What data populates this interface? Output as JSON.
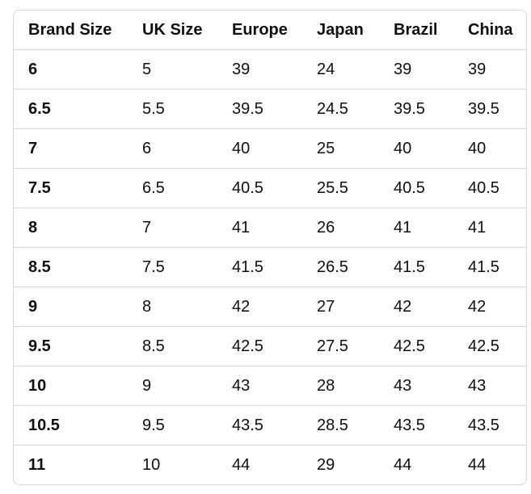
{
  "table": {
    "header": [
      "Brand Size",
      "UK Size",
      "Europe",
      "Japan",
      "Brazil",
      "China"
    ],
    "rows": [
      [
        "6",
        "5",
        "39",
        "24",
        "39",
        "39"
      ],
      [
        "6.5",
        "5.5",
        "39.5",
        "24.5",
        "39.5",
        "39.5"
      ],
      [
        "7",
        "6",
        "40",
        "25",
        "40",
        "40"
      ],
      [
        "7.5",
        "6.5",
        "40.5",
        "25.5",
        "40.5",
        "40.5"
      ],
      [
        "8",
        "7",
        "41",
        "26",
        "41",
        "41"
      ],
      [
        "8.5",
        "7.5",
        "41.5",
        "26.5",
        "41.5",
        "41.5"
      ],
      [
        "9",
        "8",
        "42",
        "27",
        "42",
        "42"
      ],
      [
        "9.5",
        "8.5",
        "42.5",
        "27.5",
        "42.5",
        "42.5"
      ],
      [
        "10",
        "9",
        "43",
        "28",
        "43",
        "43"
      ],
      [
        "10.5",
        "9.5",
        "43.5",
        "28.5",
        "43.5",
        "43.5"
      ],
      [
        "11",
        "10",
        "44",
        "29",
        "44",
        "44"
      ]
    ]
  }
}
